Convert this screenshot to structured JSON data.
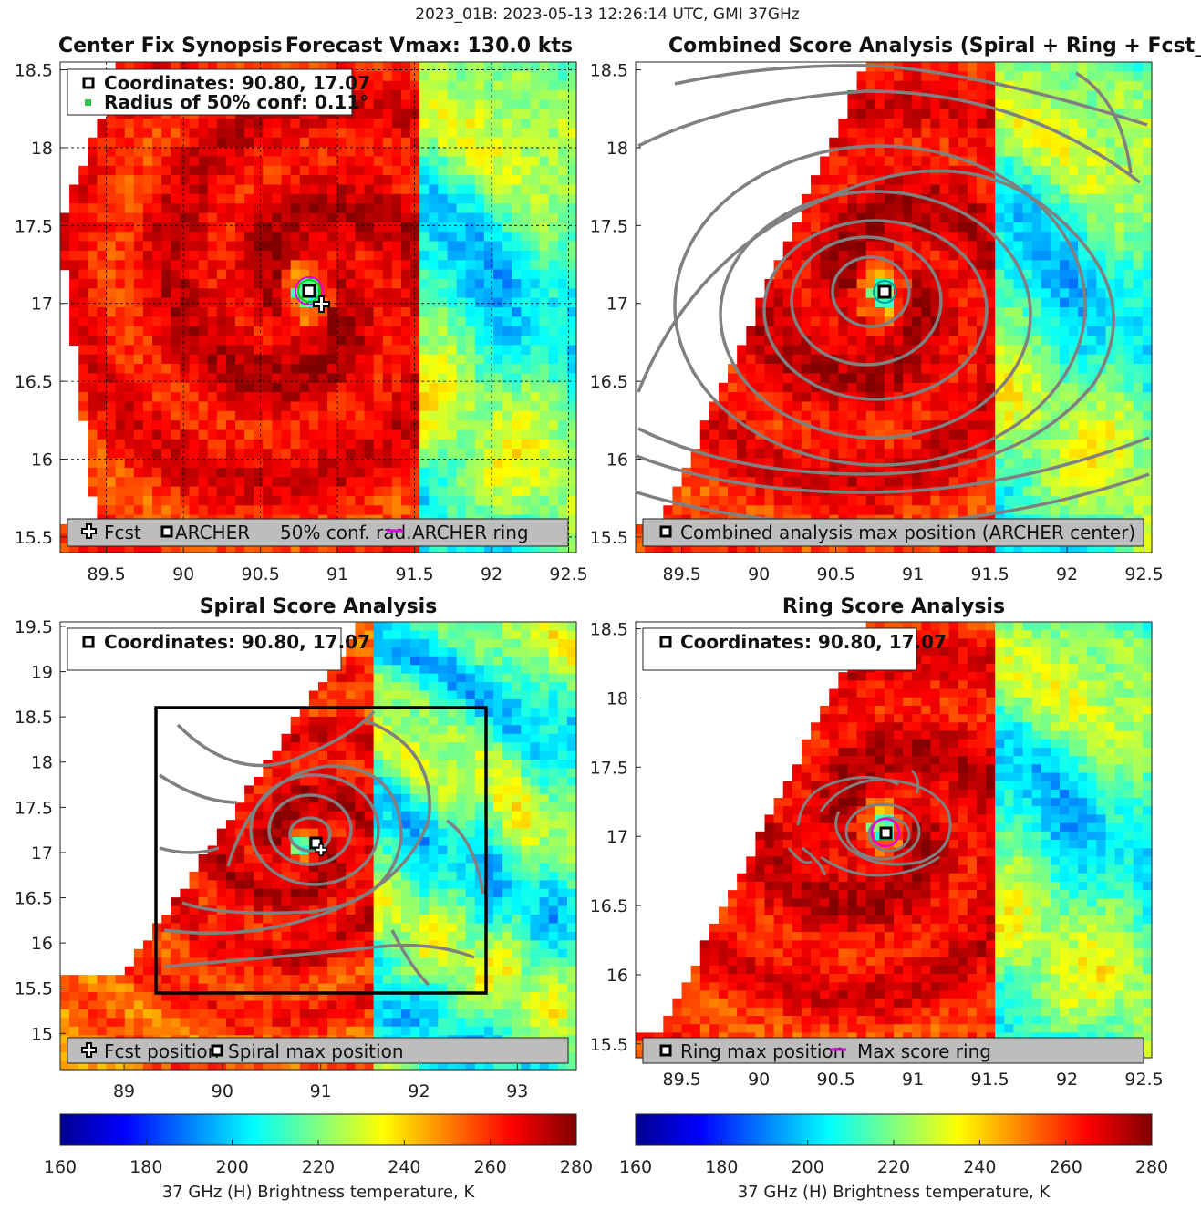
{
  "figure_title": "2023_01B: 2023-05-13 12:26:14 UTC, GMI 37GHz",
  "colors": {
    "contour": "#808080",
    "ring": "#e000e0",
    "conf": "#22cc44",
    "marker": "#000000",
    "legend_box": "#bdbdbd"
  },
  "colorbar": {
    "ticks": [
      "160",
      "180",
      "200",
      "220",
      "240",
      "260",
      "280"
    ],
    "label": "37 GHz (H) Brightness temperature, K",
    "range": [
      160,
      280
    ],
    "colormap": "jet"
  },
  "panels": [
    {
      "id": "center-fix",
      "title_left": "Center Fix Synopsis",
      "title_right": "Forecast Vmax: 130.0 kts",
      "info_lines": [
        {
          "label": "Coordinates: 90.80, 17.07",
          "icon": "square-marker"
        },
        {
          "label": "Radius of 50% conf: 0.11°",
          "icon": "green-dot"
        }
      ],
      "legend": [
        "Fcst",
        "ARCHER",
        "50% conf. rad.",
        "ARCHER ring"
      ],
      "xticks": [
        "89.5",
        "90",
        "90.5",
        "91",
        "91.5",
        "92",
        "92.5"
      ],
      "yticks": [
        "15.5",
        "16",
        "16.5",
        "17",
        "17.5",
        "18",
        "18.5"
      ]
    },
    {
      "id": "combined",
      "title": "Combined Score Analysis (Spiral + Ring + Fcst_Pe",
      "legend": [
        "Combined analysis max position (ARCHER center)"
      ],
      "xticks": [
        "89.5",
        "90",
        "90.5",
        "91",
        "91.5",
        "92",
        "92.5"
      ],
      "yticks": [
        "15.5",
        "16",
        "16.5",
        "17",
        "17.5",
        "18",
        "18.5"
      ]
    },
    {
      "id": "spiral",
      "title": "Spiral Score Analysis",
      "info_lines": [
        {
          "label": "Coordinates: 90.80, 17.07",
          "icon": "square-marker"
        }
      ],
      "legend": [
        "Fcst position",
        "Spiral max position"
      ],
      "xticks": [
        "89",
        "90",
        "91",
        "92",
        "93"
      ],
      "yticks": [
        "15",
        "15.5",
        "16",
        "16.5",
        "17",
        "17.5",
        "18",
        "18.5",
        "19",
        "19.5"
      ]
    },
    {
      "id": "ring",
      "title": "Ring Score Analysis",
      "info_lines": [
        {
          "label": "Coordinates: 90.80, 17.07",
          "icon": "square-marker"
        }
      ],
      "legend": [
        "Ring max position",
        "Max score ring"
      ],
      "xticks": [
        "89.5",
        "90",
        "90.5",
        "91",
        "91.5",
        "92",
        "92.5"
      ],
      "yticks": [
        "15.5",
        "16",
        "16.5",
        "17",
        "17.5",
        "18",
        "18.5"
      ]
    }
  ],
  "chart_data": {
    "type": "heatmap",
    "variable": "37 GHz (H) Brightness temperature",
    "units": "K",
    "center_fix": {
      "lon": 90.8,
      "lat": 17.07,
      "radius_50pct_conf_deg": 0.11
    },
    "forecast_position": {
      "lon": 90.85,
      "lat": 17.0
    },
    "forecast_vmax_kts": 130.0,
    "panels": [
      {
        "id": "center-fix",
        "xlim": [
          89.2,
          92.55
        ],
        "ylim": [
          15.4,
          18.55
        ]
      },
      {
        "id": "combined",
        "xlim": [
          89.2,
          92.55
        ],
        "ylim": [
          15.4,
          18.55
        ]
      },
      {
        "id": "spiral",
        "xlim": [
          88.35,
          93.6
        ],
        "ylim": [
          14.6,
          19.55
        ],
        "search_box": {
          "lon": [
            89.15,
            92.52
          ],
          "lat": [
            15.38,
            18.57
          ]
        }
      },
      {
        "id": "ring",
        "xlim": [
          89.2,
          92.55
        ],
        "ylim": [
          15.4,
          18.55
        ]
      }
    ]
  }
}
